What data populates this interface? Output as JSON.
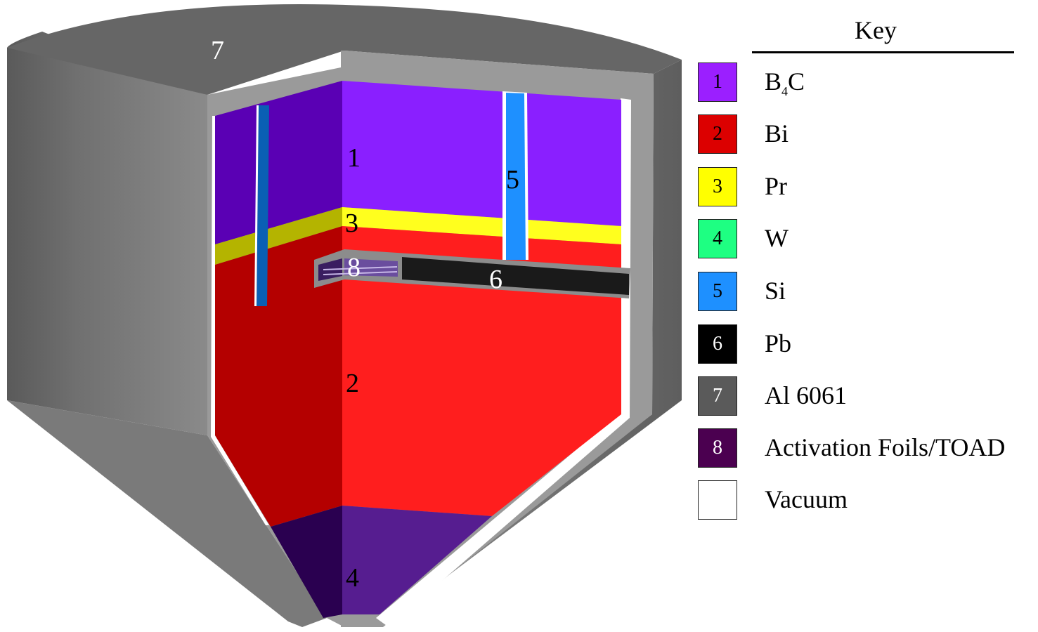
{
  "regions": [
    {
      "number": "1",
      "color": "#8a1fff"
    },
    {
      "number": "2",
      "color": "#ff1e1e"
    },
    {
      "number": "3",
      "color": "#ffff1e"
    },
    {
      "number": "4",
      "color": "#561d90"
    },
    {
      "number": "5",
      "color": "#1e90ff"
    },
    {
      "number": "6",
      "color": "#1a1a1a"
    },
    {
      "number": "7",
      "color": "#6e6e6e"
    },
    {
      "number": "8",
      "color": "#4e2d7e"
    }
  ],
  "key": {
    "title": "Key",
    "items": [
      {
        "number": "1",
        "label_main": "B",
        "label_sub": "4",
        "label_tail": "C",
        "color": "#9b1fff",
        "text_color": "#000000"
      },
      {
        "number": "2",
        "label_main": "Bi",
        "label_sub": "",
        "label_tail": "",
        "color": "#dc0000",
        "text_color": "#000000"
      },
      {
        "number": "3",
        "label_main": "Pr",
        "label_sub": "",
        "label_tail": "",
        "color": "#ffff00",
        "text_color": "#000000"
      },
      {
        "number": "4",
        "label_main": "W",
        "label_sub": "",
        "label_tail": "",
        "color": "#1eff82",
        "text_color": "#000000"
      },
      {
        "number": "5",
        "label_main": "Si",
        "label_sub": "",
        "label_tail": "",
        "color": "#1e90ff",
        "text_color": "#000000"
      },
      {
        "number": "6",
        "label_main": "Pb",
        "label_sub": "",
        "label_tail": "",
        "color": "#000000",
        "text_color": "#ffffff"
      },
      {
        "number": "7",
        "label_main": "Al 6061",
        "label_sub": "",
        "label_tail": "",
        "color": "#5a5a5a",
        "text_color": "#ffffff"
      },
      {
        "number": "8",
        "label_main": "Activation Foils/TOAD",
        "label_sub": "",
        "label_tail": "",
        "color": "#4b0050",
        "text_color": "#ffffff"
      },
      {
        "number": "",
        "label_main": "Vacuum",
        "label_sub": "",
        "label_tail": "",
        "color": "#ffffff",
        "text_color": "#000000"
      }
    ]
  }
}
